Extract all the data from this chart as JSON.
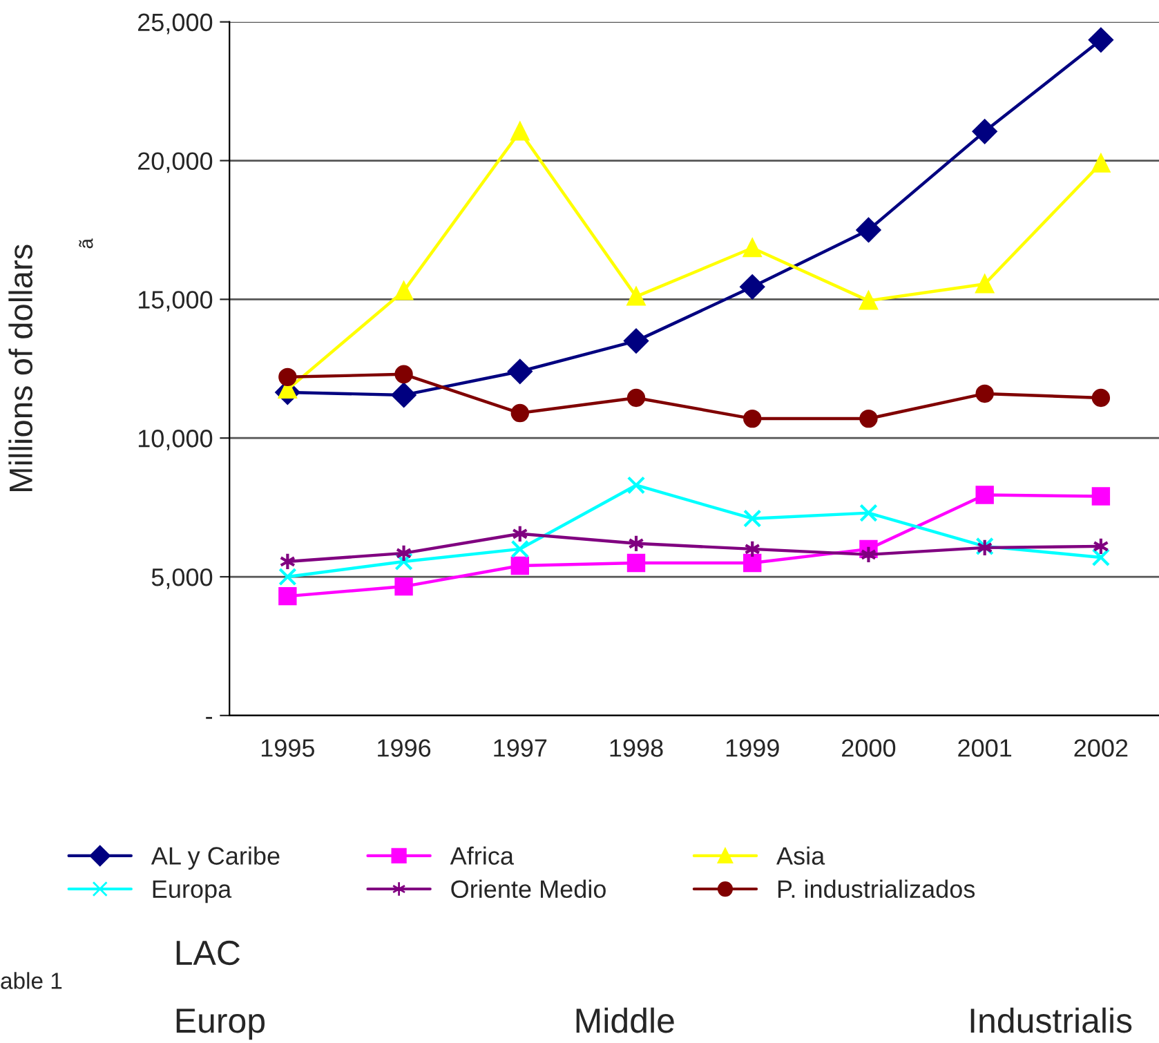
{
  "chart_data": {
    "type": "line",
    "ylabel": "Millions of dollars",
    "categories": [
      "1995",
      "1996",
      "1997",
      "1998",
      "1999",
      "2000",
      "2001",
      "2002"
    ],
    "series": [
      {
        "name": "AL y Caribe",
        "color": "#000080",
        "marker": "diamond",
        "values": [
          11650,
          11550,
          12400,
          13500,
          15450,
          17500,
          21050,
          24350
        ]
      },
      {
        "name": "Africa",
        "color": "#ff00ff",
        "marker": "square",
        "values": [
          4300,
          4650,
          5400,
          5500,
          5500,
          6000,
          7950,
          7900
        ]
      },
      {
        "name": "Asia",
        "color": "#ffff00",
        "marker": "triangle",
        "values": [
          11750,
          15300,
          21050,
          15100,
          16850,
          14950,
          15550,
          19900
        ]
      },
      {
        "name": "Europa",
        "color": "#00ffff",
        "marker": "cross",
        "values": [
          5000,
          5550,
          6000,
          8300,
          7100,
          7300,
          6100,
          5700
        ]
      },
      {
        "name": "Oriente Medio",
        "color": "#800080",
        "marker": "cross_star",
        "values": [
          5550,
          5850,
          6550,
          6200,
          6000,
          5800,
          6050,
          6100
        ]
      },
      {
        "name": "P. industrializados",
        "color": "#800000",
        "marker": "circle",
        "values": [
          12200,
          12300,
          10900,
          11450,
          10700,
          10700,
          11600,
          11450
        ]
      }
    ],
    "ylim": [
      0,
      25000
    ],
    "yticks": [
      {
        "value": 0,
        "label": "-"
      },
      {
        "value": 5000,
        "label": "5,000"
      },
      {
        "value": 10000,
        "label": "10,000"
      },
      {
        "value": 15000,
        "label": "15,000"
      },
      {
        "value": 20000,
        "label": "20,000"
      },
      {
        "value": 25000,
        "label": "25,000"
      }
    ],
    "grid": "y",
    "legend": "bottom",
    "line_style": "solid",
    "annotations": [
      "ã",
      "LAC",
      "able 1",
      "Europ",
      "Middle",
      "Industrialis"
    ]
  }
}
